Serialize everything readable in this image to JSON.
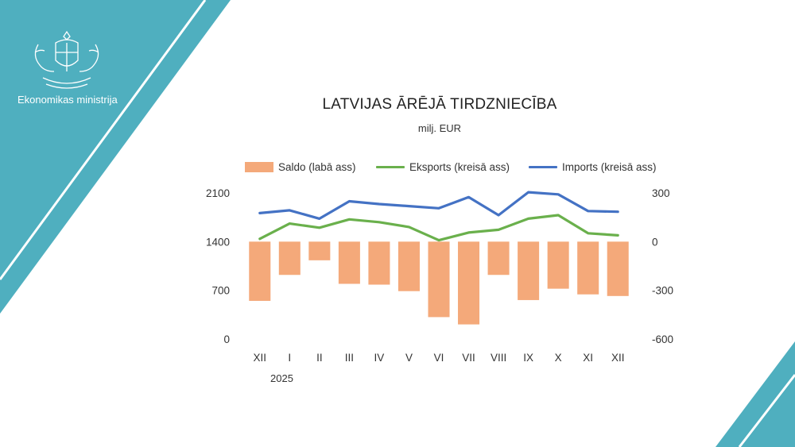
{
  "brand": {
    "name": "Ekonomikas ministrija"
  },
  "colors": {
    "teal": "#4FAFBF",
    "saldo": "#F4A97A",
    "eksports": "#6AB04C",
    "imports": "#4472C4"
  },
  "chart_data": {
    "type": "bar+line",
    "title": "LATVIJAS ĀRĒJĀ TIRDZNIECĪBA",
    "subtitle": "milj. EUR",
    "categories": [
      "XII",
      "I",
      "II",
      "III",
      "IV",
      "V",
      "VI",
      "VII",
      "VIII",
      "IX",
      "X",
      "XI",
      "XII"
    ],
    "year_label": "2025",
    "series": [
      {
        "name": "Saldo (labā ass)",
        "type": "bar",
        "axis": "right",
        "values": [
          -365,
          -205,
          -115,
          -260,
          -265,
          -305,
          -465,
          -510,
          -205,
          -360,
          -290,
          -325,
          -335
        ]
      },
      {
        "name": "Eksports (kreisā ass)",
        "type": "line",
        "axis": "left",
        "values": [
          1440,
          1660,
          1600,
          1720,
          1680,
          1610,
          1420,
          1530,
          1570,
          1730,
          1780,
          1520,
          1490
        ]
      },
      {
        "name": "Imports (kreisā ass)",
        "type": "line",
        "axis": "left",
        "values": [
          1810,
          1850,
          1730,
          1980,
          1940,
          1910,
          1880,
          2040,
          1780,
          2110,
          2080,
          1840,
          1830
        ]
      }
    ],
    "left_axis": {
      "ylim": [
        0,
        2100
      ],
      "ticks": [
        "0",
        "700",
        "1400",
        "2100"
      ]
    },
    "right_axis": {
      "ylim": [
        -600,
        300
      ],
      "ticks": [
        "-600",
        "-300",
        "0",
        "300"
      ]
    },
    "legend": "top"
  }
}
